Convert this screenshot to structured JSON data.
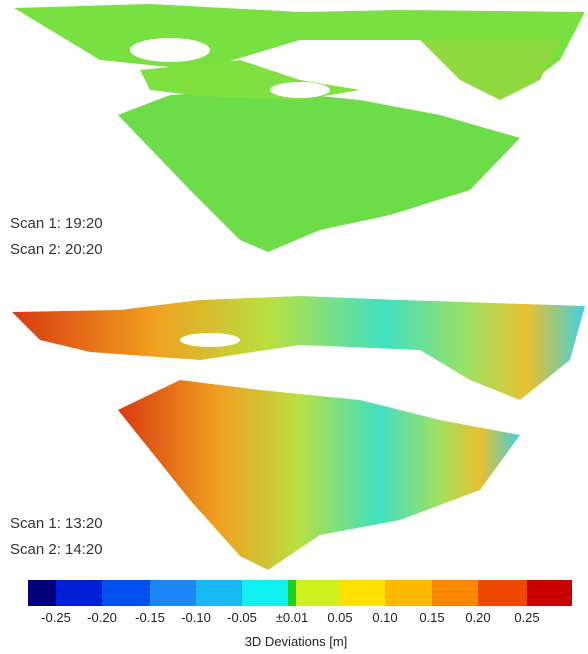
{
  "panels": [
    {
      "scan1": "Scan 1: 19:20",
      "scan2": "Scan 2: 20:20"
    },
    {
      "scan1": "Scan 1: 13:20",
      "scan2": "Scan 2: 14:20"
    }
  ],
  "colorbar": {
    "ticks": [
      "-0.25",
      "-0.20",
      "-0.15",
      "-0.10",
      "-0.05",
      "±0.01",
      "0.05",
      "0.10",
      "0.15",
      "0.20",
      "0.25"
    ],
    "label": "3D Deviations [m]"
  }
}
